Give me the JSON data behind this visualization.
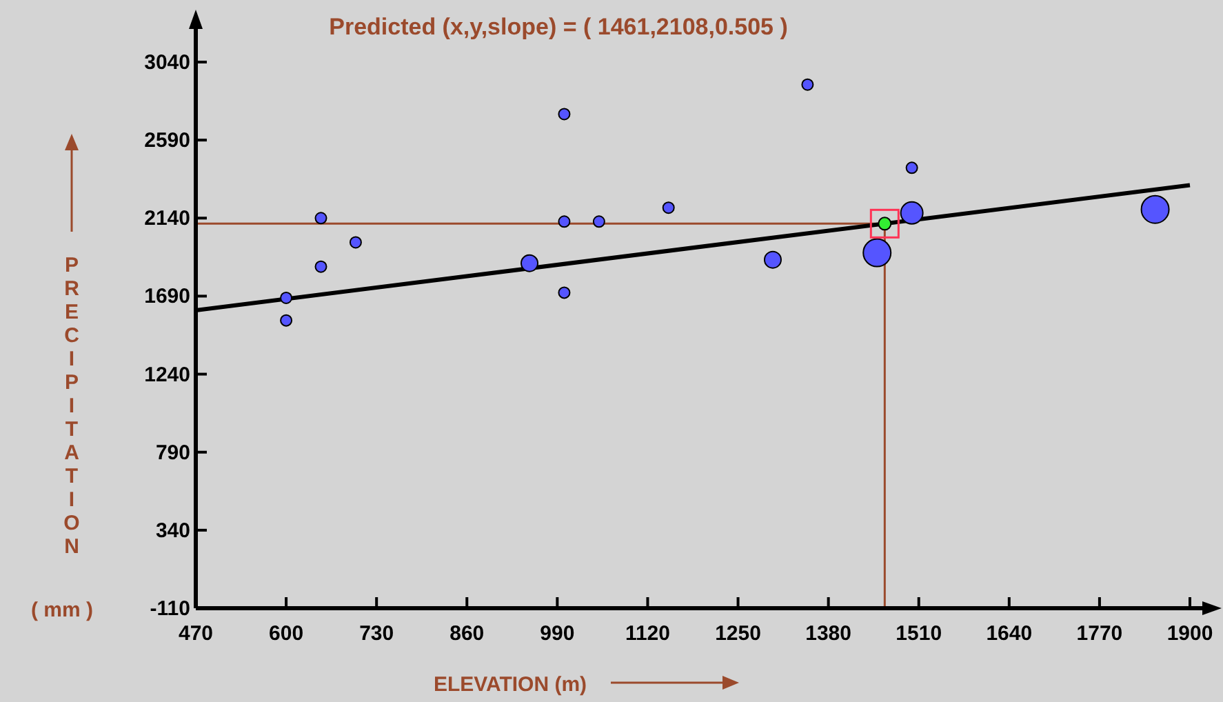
{
  "chart_data": {
    "type": "bubble",
    "title": "Predicted (x,y,slope) = ( 1461,2108,0.505 )",
    "xlabel": "ELEVATION (m)",
    "ylabel": "PRECIPITATION",
    "annotations": [
      "( mm )"
    ],
    "xlim": [
      470,
      1900
    ],
    "xticks": [
      470,
      600,
      730,
      860,
      990,
      1120,
      1250,
      1380,
      1510,
      1640,
      1770,
      1900
    ],
    "ylim": [
      -110,
      3040
    ],
    "yticks": [
      -110,
      340,
      790,
      1240,
      1690,
      2140,
      2590,
      3040
    ],
    "grid": false,
    "ref_lines": [
      {
        "axis": "x",
        "value": 1461,
        "color": "#9b4a2c"
      },
      {
        "axis": "y",
        "value": 2108,
        "color": "#9b4a2c"
      }
    ],
    "series": [
      {
        "color": "#5555ff",
        "x": [
          600,
          600,
          650,
          650,
          700,
          950,
          1000,
          1000,
          1000,
          1050,
          1150,
          1300,
          1350,
          1450,
          1500,
          1500,
          1850
        ],
        "values": [
          1680,
          1550,
          2140,
          1860,
          2000,
          1880,
          2740,
          2120,
          1710,
          2120,
          2200,
          1900,
          2910,
          1940,
          2430,
          2170,
          2190
        ],
        "sizes": [
          0.16,
          0.16,
          0.16,
          0.16,
          0.16,
          0.36,
          0.16,
          0.16,
          0.16,
          0.16,
          0.16,
          0.36,
          0.16,
          1,
          0.16,
          0.64,
          1
        ]
      },
      {
        "type": "line",
        "color": "#000000",
        "x": [
          470,
          1900
        ],
        "values": [
          1608,
          2330
        ]
      },
      {
        "type": "scatter",
        "color": "#33ee33",
        "x": [
          1461
        ],
        "values": [
          2108
        ]
      }
    ]
  }
}
